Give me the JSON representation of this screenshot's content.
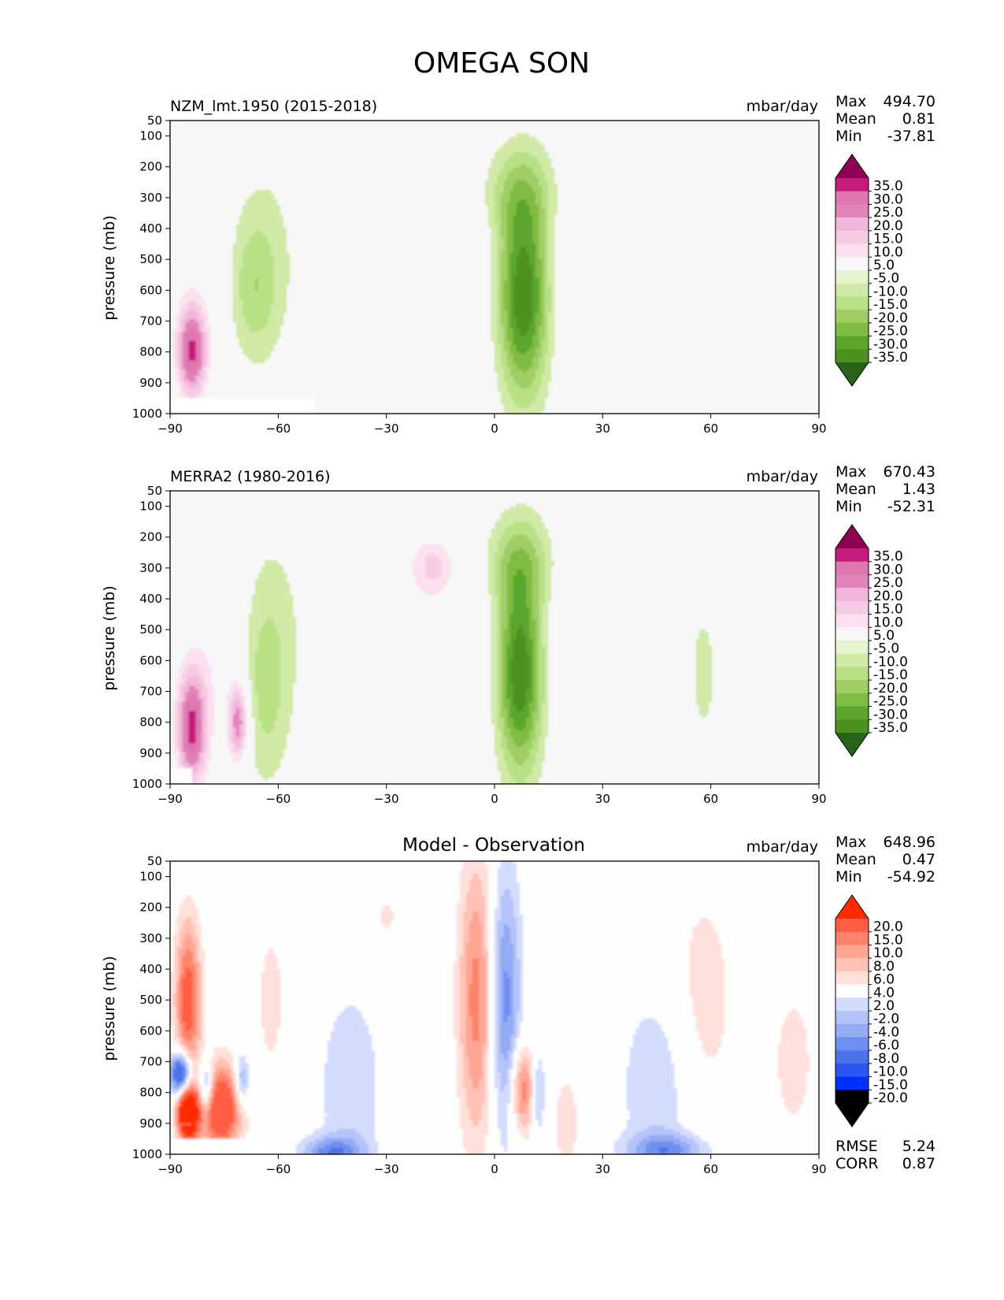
{
  "title": "OMEGA SON",
  "colors": {
    "panel_bg": "#f7f7f7",
    "diff_bg": "#fdfdfd",
    "field_ramp": [
      "#276419",
      "#4d9221",
      "#5ba62d",
      "#7fbc41",
      "#a0cd66",
      "#b8e186",
      "#d1eaa8",
      "#e6f5d0",
      "#f7f7f7",
      "#fde0ef",
      "#f6cce4",
      "#f1b6da",
      "#e184b9",
      "#de77ae",
      "#c51b7d",
      "#8e0152"
    ],
    "diff_ramp": [
      "#0032ff",
      "#2a55f0",
      "#4a72ea",
      "#6f8ff0",
      "#93aaf5",
      "#b4c4fa",
      "#d3dcfd",
      "#ffffff",
      "#ffe0da",
      "#ffc2b5",
      "#ffa593",
      "#ff826a",
      "#ff5e43",
      "#ff2a00"
    ]
  },
  "chart_data": [
    {
      "type": "heatmap",
      "id": "model",
      "left_title": "NZM_lmt.1950 (2015-2018)",
      "right_title": "mbar/day",
      "ylabel": "pressure (mb)",
      "x_ticks": [
        "−90",
        "−60",
        "−30",
        "0",
        "30",
        "60",
        "90"
      ],
      "y_ticks": [
        "50",
        "100",
        "200",
        "300",
        "400",
        "500",
        "600",
        "700",
        "800",
        "900",
        "1000"
      ],
      "xlim": [
        -90,
        90
      ],
      "ylim": [
        1000,
        50
      ],
      "stats": {
        "max_label": "Max",
        "max": "494.70",
        "mean_label": "Mean",
        "mean": "0.81",
        "min_label": "Min",
        "min": "-37.81"
      },
      "colorbar_labels": [
        "35.0",
        "30.0",
        "25.0",
        "20.0",
        "15.0",
        "10.0",
        "5.0",
        "-5.0",
        "-10.0",
        "-15.0",
        "-20.0",
        "-25.0",
        "-30.0",
        "-35.0"
      ],
      "features": [
        {
          "lat": 8,
          "p": 620,
          "wlat": 5,
          "wp": 230,
          "v": -36
        },
        {
          "lat": 7,
          "p": 280,
          "wlat": 8,
          "wp": 110,
          "v": -12
        },
        {
          "lat": -67,
          "p": 600,
          "wlat": 5,
          "wp": 160,
          "v": -12
        },
        {
          "lat": -63,
          "p": 450,
          "wlat": 8,
          "wp": 260,
          "v": -5
        },
        {
          "lat": -20,
          "p": 540,
          "wlat": 13,
          "wp": 280,
          "v": 9
        },
        {
          "lat": 25,
          "p": 500,
          "wlat": 7,
          "wp": 280,
          "v": 6
        },
        {
          "lat": 55,
          "p": 650,
          "wlat": 4,
          "wp": 230,
          "v": -4
        },
        {
          "lat": 80,
          "p": 720,
          "wlat": 2,
          "wp": 140,
          "v": 4
        },
        {
          "lat": -84,
          "p": 800,
          "wlat": 3,
          "wp": 110,
          "v": 34
        },
        {
          "lat": -80,
          "p": 600,
          "wlat": 7,
          "wp": 220,
          "v": 5
        }
      ],
      "mask": {
        "lat_max": -50,
        "p_min": 950
      }
    },
    {
      "type": "heatmap",
      "id": "obs",
      "left_title": "MERRA2 (1980-2016)",
      "right_title": "mbar/day",
      "ylabel": "pressure (mb)",
      "x_ticks": [
        "−90",
        "−60",
        "−30",
        "0",
        "30",
        "60",
        "90"
      ],
      "y_ticks": [
        "50",
        "100",
        "200",
        "300",
        "400",
        "500",
        "600",
        "700",
        "800",
        "900",
        "1000"
      ],
      "xlim": [
        -90,
        90
      ],
      "ylim": [
        1000,
        50
      ],
      "stats": {
        "max_label": "Max",
        "max": "670.43",
        "mean_label": "Mean",
        "mean": "1.43",
        "min_label": "Min",
        "min": "-52.31"
      },
      "colorbar_labels": [
        "35.0",
        "30.0",
        "25.0",
        "20.0",
        "15.0",
        "10.0",
        "5.0",
        "-5.0",
        "-10.0",
        "-15.0",
        "-20.0",
        "-25.0",
        "-30.0",
        "-35.0"
      ],
      "features": [
        {
          "lat": 7,
          "p": 640,
          "wlat": 4.5,
          "wp": 230,
          "v": -36
        },
        {
          "lat": 7,
          "p": 280,
          "wlat": 7,
          "wp": 110,
          "v": -14
        },
        {
          "lat": -64,
          "p": 700,
          "wlat": 5,
          "wp": 220,
          "v": -12
        },
        {
          "lat": -61,
          "p": 450,
          "wlat": 8,
          "wp": 260,
          "v": -5
        },
        {
          "lat": -20,
          "p": 560,
          "wlat": 14,
          "wp": 300,
          "v": 8
        },
        {
          "lat": -17,
          "p": 290,
          "wlat": 4,
          "wp": 60,
          "v": 12
        },
        {
          "lat": 25,
          "p": 500,
          "wlat": 7,
          "wp": 300,
          "v": 6
        },
        {
          "lat": 58,
          "p": 640,
          "wlat": 4,
          "wp": 240,
          "v": -6
        },
        {
          "lat": -84,
          "p": 820,
          "wlat": 3,
          "wp": 130,
          "v": 34
        },
        {
          "lat": -71,
          "p": 800,
          "wlat": 2,
          "wp": 90,
          "v": 28
        },
        {
          "lat": -77,
          "p": 620,
          "wlat": 8,
          "wp": 250,
          "v": 8
        },
        {
          "lat": 80,
          "p": 780,
          "wlat": 2,
          "wp": 120,
          "v": 6
        }
      ],
      "mask": {
        "lat_max": -84,
        "p_min": 950
      }
    },
    {
      "type": "heatmap",
      "id": "diff",
      "center_title": "Model - Observation",
      "right_title": "mbar/day",
      "ylabel": "pressure (mb)",
      "x_ticks": [
        "−90",
        "−60",
        "−30",
        "0",
        "30",
        "60",
        "90"
      ],
      "y_ticks": [
        "50",
        "100",
        "200",
        "300",
        "400",
        "500",
        "600",
        "700",
        "800",
        "900",
        "1000"
      ],
      "xlim": [
        -90,
        90
      ],
      "ylim": [
        1000,
        50
      ],
      "stats": {
        "max_label": "Max",
        "max": "648.96",
        "mean_label": "Mean",
        "mean": "0.47",
        "min_label": "Min",
        "min": "-54.92"
      },
      "colorbar_labels": [
        "20.0",
        "15.0",
        "10.0",
        "8.0",
        "6.0",
        "4.0",
        "2.0",
        "-2.0",
        "-4.0",
        "-6.0",
        "-8.0",
        "-10.0",
        "-15.0",
        "-20.0"
      ],
      "metrics": {
        "rmse_label": "RMSE",
        "rmse": "5.24",
        "corr_label": "CORR",
        "corr": "0.87"
      },
      "features": [
        {
          "lat": -5,
          "p": 500,
          "wlat": 3.5,
          "wp": 330,
          "v": 9
        },
        {
          "lat": 3,
          "p": 500,
          "wlat": 3,
          "wp": 300,
          "v": -9
        },
        {
          "lat": 8,
          "p": 790,
          "wlat": 2.5,
          "wp": 100,
          "v": 10
        },
        {
          "lat": 12,
          "p": 800,
          "wlat": 1.5,
          "wp": 100,
          "v": -6
        },
        {
          "lat": -40,
          "p": 780,
          "wlat": 6,
          "wp": 220,
          "v": -4
        },
        {
          "lat": -45,
          "p": 1000,
          "wlat": 6,
          "wp": 40,
          "v": -9
        },
        {
          "lat": 45,
          "p": 780,
          "wlat": 7,
          "wp": 220,
          "v": -4
        },
        {
          "lat": 48,
          "p": 990,
          "wlat": 8,
          "wp": 40,
          "v": -8
        },
        {
          "lat": 58,
          "p": 500,
          "wlat": 7,
          "wp": 300,
          "v": 3
        },
        {
          "lat": -62,
          "p": 500,
          "wlat": 4,
          "wp": 250,
          "v": 2.5
        },
        {
          "lat": -85,
          "p": 500,
          "wlat": 2.5,
          "wp": 180,
          "v": 12
        },
        {
          "lat": -85,
          "p": 870,
          "wlat": 2,
          "wp": 60,
          "v": 25
        },
        {
          "lat": -76,
          "p": 850,
          "wlat": 4,
          "wp": 100,
          "v": 15
        },
        {
          "lat": -87,
          "p": 740,
          "wlat": 2,
          "wp": 50,
          "v": -18
        },
        {
          "lat": -80,
          "p": 780,
          "wlat": 1.5,
          "wp": 60,
          "v": -10
        },
        {
          "lat": -70,
          "p": 760,
          "wlat": 1.5,
          "wp": 60,
          "v": -8
        },
        {
          "lat": -30,
          "p": 230,
          "wlat": 2,
          "wp": 40,
          "v": 3
        },
        {
          "lat": 20,
          "p": 900,
          "wlat": 3,
          "wp": 140,
          "v": 3
        },
        {
          "lat": 83,
          "p": 700,
          "wlat": 6,
          "wp": 250,
          "v": 2.5
        }
      ],
      "mask": {
        "lat_max": -63,
        "p_min": 950
      }
    }
  ]
}
